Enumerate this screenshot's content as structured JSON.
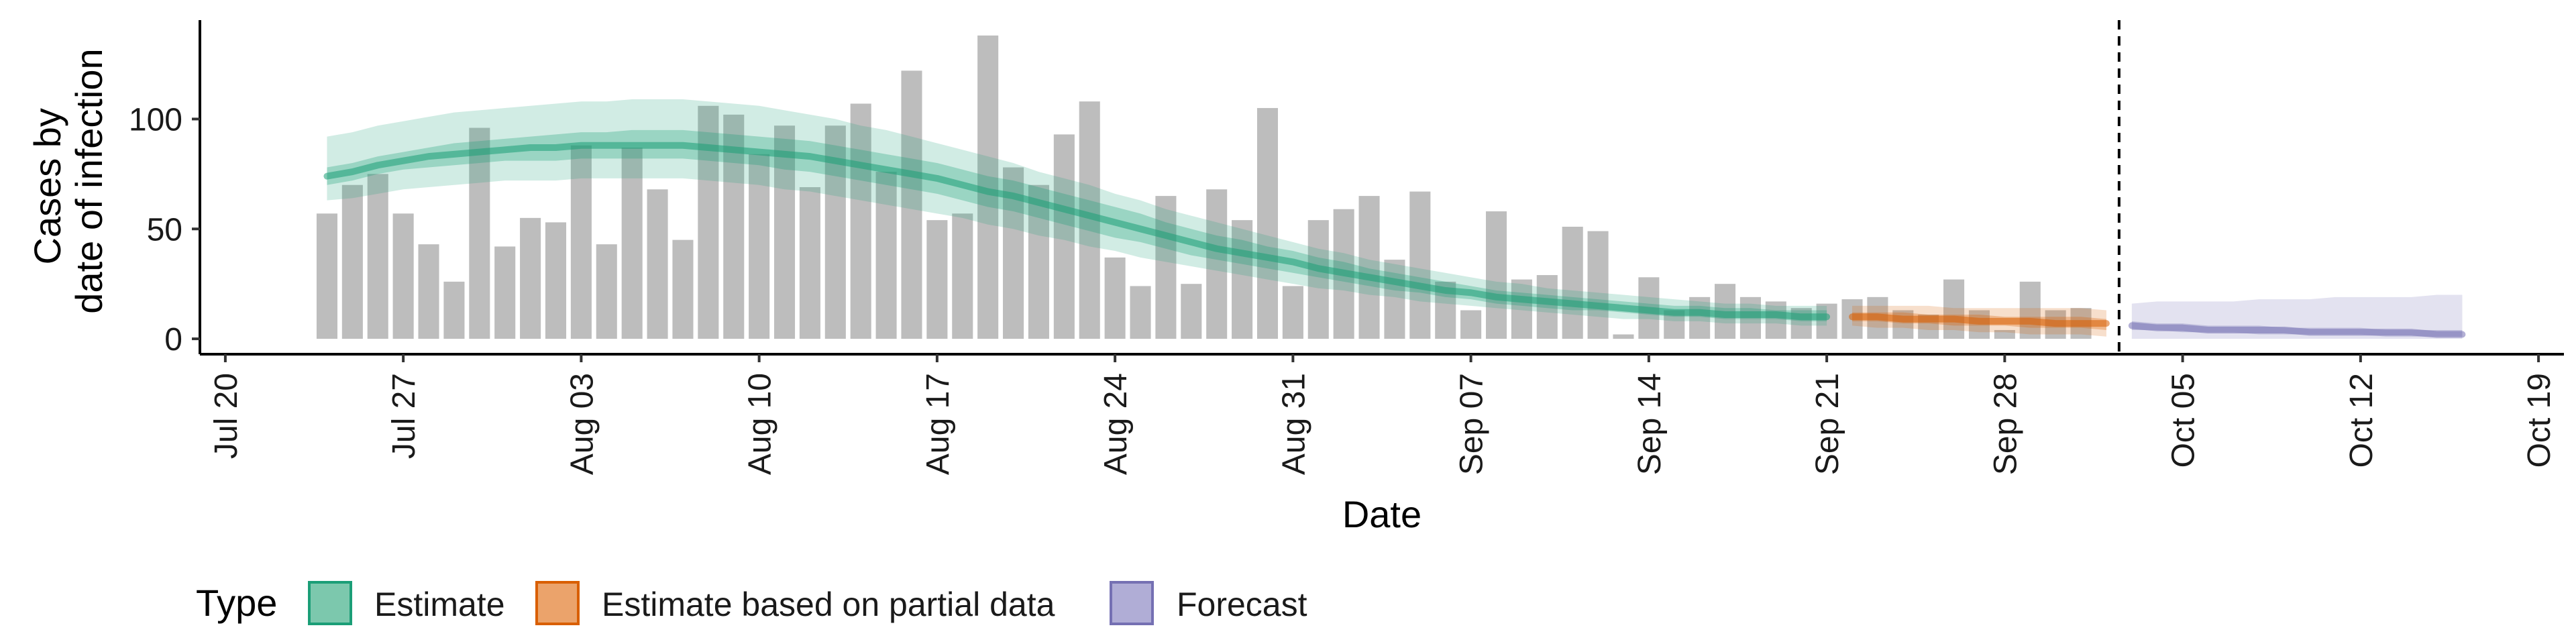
{
  "chart_data": {
    "type": "bar",
    "ylabel_lines": [
      "Cases by",
      "date of infection"
    ],
    "xlabel": "Date",
    "ylim": [
      -7,
      145
    ],
    "xlim": [
      "2020-07-19",
      "2020-10-20"
    ],
    "y_ticks": [
      0,
      50,
      100
    ],
    "x_ticks": [
      {
        "date": "2020-07-20",
        "label": "Jul 20"
      },
      {
        "date": "2020-07-27",
        "label": "Jul 27"
      },
      {
        "date": "2020-08-03",
        "label": "Aug 03"
      },
      {
        "date": "2020-08-10",
        "label": "Aug 10"
      },
      {
        "date": "2020-08-17",
        "label": "Aug 17"
      },
      {
        "date": "2020-08-24",
        "label": "Aug 24"
      },
      {
        "date": "2020-08-31",
        "label": "Aug 31"
      },
      {
        "date": "2020-09-07",
        "label": "Sep 07"
      },
      {
        "date": "2020-09-14",
        "label": "Sep 14"
      },
      {
        "date": "2020-09-21",
        "label": "Sep 21"
      },
      {
        "date": "2020-09-28",
        "label": "Sep 28"
      },
      {
        "date": "2020-10-05",
        "label": "Oct 05"
      },
      {
        "date": "2020-10-12",
        "label": "Oct 12"
      },
      {
        "date": "2020-10-19",
        "label": "Oct 19"
      }
    ],
    "bars": {
      "start_date": "2020-07-24",
      "values": [
        57,
        70,
        75,
        57,
        43,
        26,
        96,
        42,
        55,
        53,
        88,
        43,
        87,
        68,
        45,
        106,
        102,
        84,
        97,
        69,
        97,
        107,
        76,
        122,
        54,
        57,
        138,
        78,
        70,
        93,
        108,
        37,
        24,
        65,
        25,
        68,
        54,
        105,
        24,
        54,
        59,
        65,
        36,
        67,
        26,
        13,
        58,
        27,
        29,
        51,
        49,
        2,
        28,
        13,
        19,
        25,
        19,
        17,
        14,
        16,
        18,
        19,
        13,
        11,
        27,
        13,
        4,
        26,
        13,
        14
      ],
      "color": "#bdbdbd"
    },
    "forecast_date": "2020-10-02",
    "series": [
      {
        "name": "Estimate",
        "color": "#1b9e77",
        "start_date": "2020-07-24",
        "median": [
          74,
          76,
          79,
          81,
          83,
          84,
          85,
          86,
          87,
          87,
          88,
          88,
          88,
          88,
          88,
          87,
          86,
          85,
          84,
          83,
          81,
          79,
          77,
          75,
          73,
          70,
          67,
          65,
          62,
          59,
          56,
          53,
          50,
          47,
          44,
          41,
          39,
          37,
          35,
          32,
          30,
          28,
          26,
          24,
          22,
          21,
          19,
          18,
          17,
          16,
          15,
          14,
          13,
          12,
          12,
          11,
          11,
          11,
          10,
          10
        ],
        "inner": [
          [
            70,
            78
          ],
          [
            72,
            80
          ],
          [
            75,
            83
          ],
          [
            77,
            85
          ],
          [
            78,
            87
          ],
          [
            79,
            89
          ],
          [
            80,
            90
          ],
          [
            81,
            91
          ],
          [
            81,
            92
          ],
          [
            81,
            93
          ],
          [
            82,
            94
          ],
          [
            82,
            94
          ],
          [
            82,
            95
          ],
          [
            82,
            95
          ],
          [
            82,
            95
          ],
          [
            81,
            94
          ],
          [
            80,
            93
          ],
          [
            79,
            92
          ],
          [
            77,
            91
          ],
          [
            76,
            90
          ],
          [
            74,
            88
          ],
          [
            72,
            86
          ],
          [
            70,
            84
          ],
          [
            68,
            82
          ],
          [
            66,
            80
          ],
          [
            63,
            77
          ],
          [
            60,
            74
          ],
          [
            58,
            72
          ],
          [
            55,
            69
          ],
          [
            52,
            66
          ],
          [
            49,
            63
          ],
          [
            46,
            60
          ],
          [
            44,
            57
          ],
          [
            41,
            53
          ],
          [
            38,
            50
          ],
          [
            36,
            47
          ],
          [
            34,
            45
          ],
          [
            32,
            42
          ],
          [
            30,
            40
          ],
          [
            28,
            37
          ],
          [
            26,
            35
          ],
          [
            24,
            32
          ],
          [
            22,
            30
          ],
          [
            21,
            28
          ],
          [
            19,
            26
          ],
          [
            18,
            24
          ],
          [
            16,
            22
          ],
          [
            15,
            21
          ],
          [
            14,
            20
          ],
          [
            13,
            19
          ],
          [
            13,
            18
          ],
          [
            12,
            17
          ],
          [
            11,
            16
          ],
          [
            10,
            15
          ],
          [
            10,
            15
          ],
          [
            9,
            14
          ],
          [
            9,
            14
          ],
          [
            9,
            13
          ],
          [
            8,
            13
          ],
          [
            8,
            13
          ]
        ],
        "outer": [
          [
            63,
            92
          ],
          [
            64,
            94
          ],
          [
            66,
            97
          ],
          [
            68,
            99
          ],
          [
            69,
            101
          ],
          [
            70,
            103
          ],
          [
            71,
            104
          ],
          [
            72,
            105
          ],
          [
            72,
            106
          ],
          [
            72,
            107
          ],
          [
            73,
            108
          ],
          [
            73,
            108
          ],
          [
            73,
            109
          ],
          [
            73,
            109
          ],
          [
            73,
            109
          ],
          [
            72,
            108
          ],
          [
            71,
            107
          ],
          [
            70,
            106
          ],
          [
            68,
            104
          ],
          [
            67,
            102
          ],
          [
            65,
            100
          ],
          [
            63,
            97
          ],
          [
            61,
            95
          ],
          [
            59,
            92
          ],
          [
            57,
            89
          ],
          [
            55,
            86
          ],
          [
            52,
            83
          ],
          [
            50,
            80
          ],
          [
            47,
            76
          ],
          [
            45,
            73
          ],
          [
            42,
            70
          ],
          [
            40,
            66
          ],
          [
            37,
            63
          ],
          [
            35,
            59
          ],
          [
            33,
            56
          ],
          [
            31,
            53
          ],
          [
            29,
            50
          ],
          [
            27,
            47
          ],
          [
            25,
            44
          ],
          [
            23,
            41
          ],
          [
            22,
            39
          ],
          [
            20,
            36
          ],
          [
            19,
            34
          ],
          [
            17,
            32
          ],
          [
            16,
            30
          ],
          [
            15,
            28
          ],
          [
            14,
            26
          ],
          [
            13,
            25
          ],
          [
            12,
            23
          ],
          [
            11,
            22
          ],
          [
            10,
            21
          ],
          [
            9,
            20
          ],
          [
            9,
            19
          ],
          [
            8,
            18
          ],
          [
            8,
            17
          ],
          [
            7,
            16
          ],
          [
            7,
            16
          ],
          [
            7,
            15
          ],
          [
            6,
            15
          ],
          [
            6,
            15
          ]
        ]
      },
      {
        "name": "Estimate based on partial data",
        "color": "#d95f02",
        "start_date": "2020-09-22",
        "median": [
          10,
          10,
          9,
          9,
          9,
          8,
          8,
          8,
          7,
          7,
          7
        ],
        "inner": [
          [
            8,
            12
          ],
          [
            8,
            12
          ],
          [
            7,
            12
          ],
          [
            7,
            11
          ],
          [
            6,
            11
          ],
          [
            6,
            11
          ],
          [
            6,
            10
          ],
          [
            5,
            10
          ],
          [
            5,
            10
          ],
          [
            5,
            10
          ],
          [
            4,
            9
          ]
        ],
        "outer": [
          [
            6,
            15
          ],
          [
            5,
            15
          ],
          [
            5,
            15
          ],
          [
            4,
            15
          ],
          [
            4,
            14
          ],
          [
            3,
            14
          ],
          [
            3,
            14
          ],
          [
            2,
            14
          ],
          [
            2,
            14
          ],
          [
            2,
            14
          ],
          [
            1,
            13
          ]
        ]
      },
      {
        "name": "Forecast",
        "color": "#7570b3",
        "start_date": "2020-10-03",
        "median": [
          6,
          5,
          5,
          4,
          4,
          4,
          4,
          3,
          3,
          3,
          3,
          3,
          2,
          2
        ],
        "inner": [
          [
            4,
            8
          ],
          [
            4,
            7
          ],
          [
            3,
            7
          ],
          [
            3,
            6
          ],
          [
            3,
            6
          ],
          [
            2,
            6
          ],
          [
            2,
            5
          ],
          [
            2,
            5
          ],
          [
            2,
            5
          ],
          [
            2,
            5
          ],
          [
            1,
            4
          ],
          [
            1,
            4
          ],
          [
            1,
            4
          ],
          [
            1,
            4
          ]
        ],
        "outer": [
          [
            0,
            16
          ],
          [
            0,
            17
          ],
          [
            0,
            17
          ],
          [
            0,
            17
          ],
          [
            0,
            17
          ],
          [
            0,
            18
          ],
          [
            0,
            18
          ],
          [
            0,
            18
          ],
          [
            0,
            19
          ],
          [
            0,
            19
          ],
          [
            0,
            19
          ],
          [
            0,
            19
          ],
          [
            0,
            20
          ],
          [
            0,
            20
          ]
        ]
      }
    ]
  },
  "legend": {
    "title": "Type",
    "items": [
      {
        "label": "Estimate",
        "fill": "#7cc8ad",
        "stroke": "#1b9e77"
      },
      {
        "label": "Estimate based on partial data",
        "fill": "#eba36b",
        "stroke": "#d95f02"
      },
      {
        "label": "Forecast",
        "fill": "#b0add6",
        "stroke": "#7570b3"
      }
    ]
  }
}
